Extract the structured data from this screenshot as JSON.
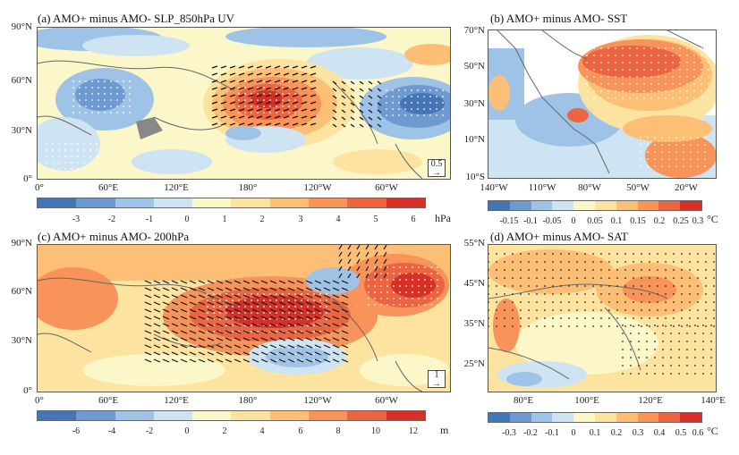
{
  "panels": {
    "a": {
      "title": "(a) AMO+ minus AMO- SLP_850hPa UV",
      "y_ticks": [
        "90°N",
        "60°N",
        "30°N",
        "0°"
      ],
      "x_ticks": [
        "0°",
        "60°E",
        "120°E",
        "180°",
        "120°W",
        "60°W"
      ],
      "ref_vector": "0.5",
      "colorbar_ticks": [
        "-3",
        "-2",
        "-1",
        "0",
        "1",
        "2",
        "3",
        "4",
        "5",
        "6"
      ],
      "unit": "hPa"
    },
    "b": {
      "title": "(b) AMO+ minus AMO- SST",
      "y_ticks": [
        "70°N",
        "50°N",
        "30°N",
        "10°N",
        "10°S"
      ],
      "x_ticks": [
        "140°W",
        "110°W",
        "80°W",
        "50°W",
        "20°W"
      ],
      "colorbar_ticks": [
        "-0.15",
        "-0.1",
        "-0.05",
        "0",
        "0.05",
        "0.1",
        "0.15",
        "0.2",
        "0.25",
        "0.3"
      ],
      "unit": "°C"
    },
    "c": {
      "title": "(c) AMO+ minus AMO- 200hPa",
      "y_ticks": [
        "90°N",
        "60°N",
        "30°N",
        "0°"
      ],
      "x_ticks": [
        "0°",
        "60°E",
        "120°E",
        "180°",
        "120°W",
        "60°W"
      ],
      "ref_vector": "1",
      "colorbar_ticks": [
        "-6",
        "-4",
        "-2",
        "0",
        "2",
        "4",
        "6",
        "8",
        "10",
        "12"
      ],
      "unit": "m"
    },
    "d": {
      "title": "(d) AMO+ minus AMO- SAT",
      "y_ticks": [
        "55°N",
        "45°N",
        "35°N",
        "25°N"
      ],
      "x_ticks": [
        "80°E",
        "100°E",
        "120°E",
        "140°E"
      ],
      "colorbar_ticks": [
        "-0.3",
        "-0.2",
        "-0.1",
        "0",
        "0.1",
        "0.2",
        "0.3",
        "0.4",
        "0.5",
        "0.6"
      ],
      "unit": "°C"
    }
  },
  "palette": [
    "#4575b4",
    "#6f9ad0",
    "#9fc3e6",
    "#cfe4f3",
    "#fbf7c8",
    "#fde3a0",
    "#fdbf75",
    "#f8935a",
    "#ec6440",
    "#d73027"
  ]
}
